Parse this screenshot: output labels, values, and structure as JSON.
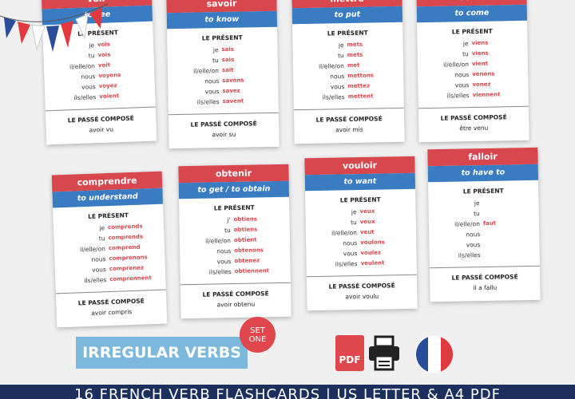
{
  "labels": {
    "present": "LE PRÉSENT",
    "past": "LE PASSÉ COMPOSÉ"
  },
  "cards": [
    {
      "verb": "voir",
      "translation": "to see",
      "rows": [
        [
          "je",
          "vois"
        ],
        [
          "tu",
          "vois"
        ],
        [
          "il/elle/on",
          "voit"
        ],
        [
          "nous",
          "voyons"
        ],
        [
          "vous",
          "voyez"
        ],
        [
          "ils/elles",
          "voient"
        ]
      ],
      "past": "avoir vu"
    },
    {
      "verb": "savoir",
      "translation": "to know",
      "rows": [
        [
          "je",
          "sais"
        ],
        [
          "tu",
          "sais"
        ],
        [
          "il/elle/on",
          "sait"
        ],
        [
          "nous",
          "savons"
        ],
        [
          "vous",
          "savez"
        ],
        [
          "ils/elles",
          "savent"
        ]
      ],
      "past": "avoir su"
    },
    {
      "verb": "mettre",
      "translation": "to put",
      "rows": [
        [
          "je",
          "mets"
        ],
        [
          "tu",
          "mets"
        ],
        [
          "il/elle/on",
          "met"
        ],
        [
          "nous",
          "mettons"
        ],
        [
          "vous",
          "mettez"
        ],
        [
          "ils/elles",
          "mettent"
        ]
      ],
      "past": "avoir mis"
    },
    {
      "verb": "venir",
      "translation": "to come",
      "rows": [
        [
          "je",
          "viens"
        ],
        [
          "tu",
          "viens"
        ],
        [
          "il/elle/on",
          "vient"
        ],
        [
          "nous",
          "venons"
        ],
        [
          "vous",
          "venez"
        ],
        [
          "ils/elles",
          "viennent"
        ]
      ],
      "past": "être  venu"
    },
    {
      "verb": "comprendre",
      "translation": "to understand",
      "rows": [
        [
          "je",
          "comprends"
        ],
        [
          "tu",
          "comprends"
        ],
        [
          "il/elle/on",
          "comprend"
        ],
        [
          "nous",
          "comprenons"
        ],
        [
          "vous",
          "comprenez"
        ],
        [
          "ils/elles",
          "comprennent"
        ]
      ],
      "past": "avoir compris"
    },
    {
      "verb": "obtenir",
      "translation": "to get / to obtain",
      "rows": [
        [
          "j'",
          "obtiens"
        ],
        [
          "tu",
          "obtiens"
        ],
        [
          "il/elle/on",
          "obtient"
        ],
        [
          "nous",
          "obtenons"
        ],
        [
          "vous",
          "obtenez"
        ],
        [
          "ils/elles",
          "obtiennent"
        ]
      ],
      "past": "avoir obtenu"
    },
    {
      "verb": "vouloir",
      "translation": "to want",
      "rows": [
        [
          "je",
          "veux"
        ],
        [
          "tu",
          "veux"
        ],
        [
          "il/elle/on",
          "veut"
        ],
        [
          "nous",
          "voulons"
        ],
        [
          "vous",
          "voulez"
        ],
        [
          "ils/elles",
          "veulent"
        ]
      ],
      "past": "avoir voulu"
    },
    {
      "verb": "falloir",
      "translation": "to have to",
      "rows": [
        [
          "je",
          null
        ],
        [
          "tu",
          null
        ],
        [
          "il/elle/on",
          "faut"
        ],
        [
          "nous",
          null
        ],
        [
          "vous",
          null
        ],
        [
          "ils/elles",
          null
        ]
      ],
      "past": "il a fallu"
    }
  ],
  "badge": "IRREGULAR VERBS",
  "set_badge": "SET ONE",
  "pdf_icon": "PDF",
  "footer": "16 FRENCH VERB FLASHCARDS | US LETTER & A4 PDF"
}
